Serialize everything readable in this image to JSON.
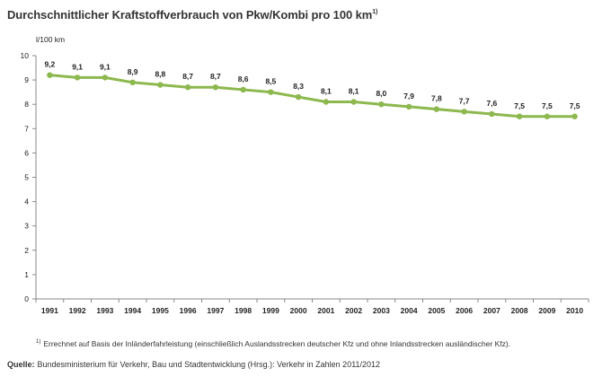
{
  "title": "Durchschnittlicher Kraftstoffverbrauch von Pkw/Kombi pro 100 km",
  "title_footnote_marker": "1)",
  "footnote": {
    "marker": "1)",
    "text": "Errechnet auf Basis der Inländerfahrleistung (einschließlich Auslandsstrecken deutscher Kfz und ohne Inlandsstrecken ausländischer Kfz)."
  },
  "source": {
    "label": "Quelle:",
    "text": "Bundesministerium für Verkehr, Bau und Stadtentwicklung (Hrsg.): Verkehr in Zahlen 2011/2012"
  },
  "chart_data": {
    "type": "line",
    "title": "Durchschnittlicher Kraftstoffverbrauch von Pkw/Kombi pro 100 km",
    "xlabel": "",
    "ylabel": "l/100 km",
    "ylim": [
      0,
      10
    ],
    "yticks": [
      "0",
      "1",
      "2",
      "3",
      "4",
      "5",
      "6",
      "7",
      "8",
      "9",
      "10"
    ],
    "grid": false,
    "line_color": "#8cb84e",
    "categories": [
      "1991",
      "1992",
      "1993",
      "1994",
      "1995",
      "1996",
      "1997",
      "1998",
      "1999",
      "2000",
      "2001",
      "2002",
      "2003",
      "2004",
      "2005",
      "2006",
      "2007",
      "2008",
      "2009",
      "2010"
    ],
    "values": [
      9.2,
      9.1,
      9.1,
      8.9,
      8.8,
      8.7,
      8.7,
      8.6,
      8.5,
      8.3,
      8.1,
      8.1,
      8.0,
      7.9,
      7.8,
      7.7,
      7.6,
      7.5,
      7.5,
      7.5
    ],
    "data_labels": [
      "9,2",
      "9,1",
      "9,1",
      "8,9",
      "8,8",
      "8,7",
      "8,7",
      "8,6",
      "8,5",
      "8,3",
      "8,1",
      "8,1",
      "8,0",
      "7,9",
      "7,8",
      "7,7",
      "7,6",
      "7,5",
      "7,5",
      "7,5"
    ]
  }
}
